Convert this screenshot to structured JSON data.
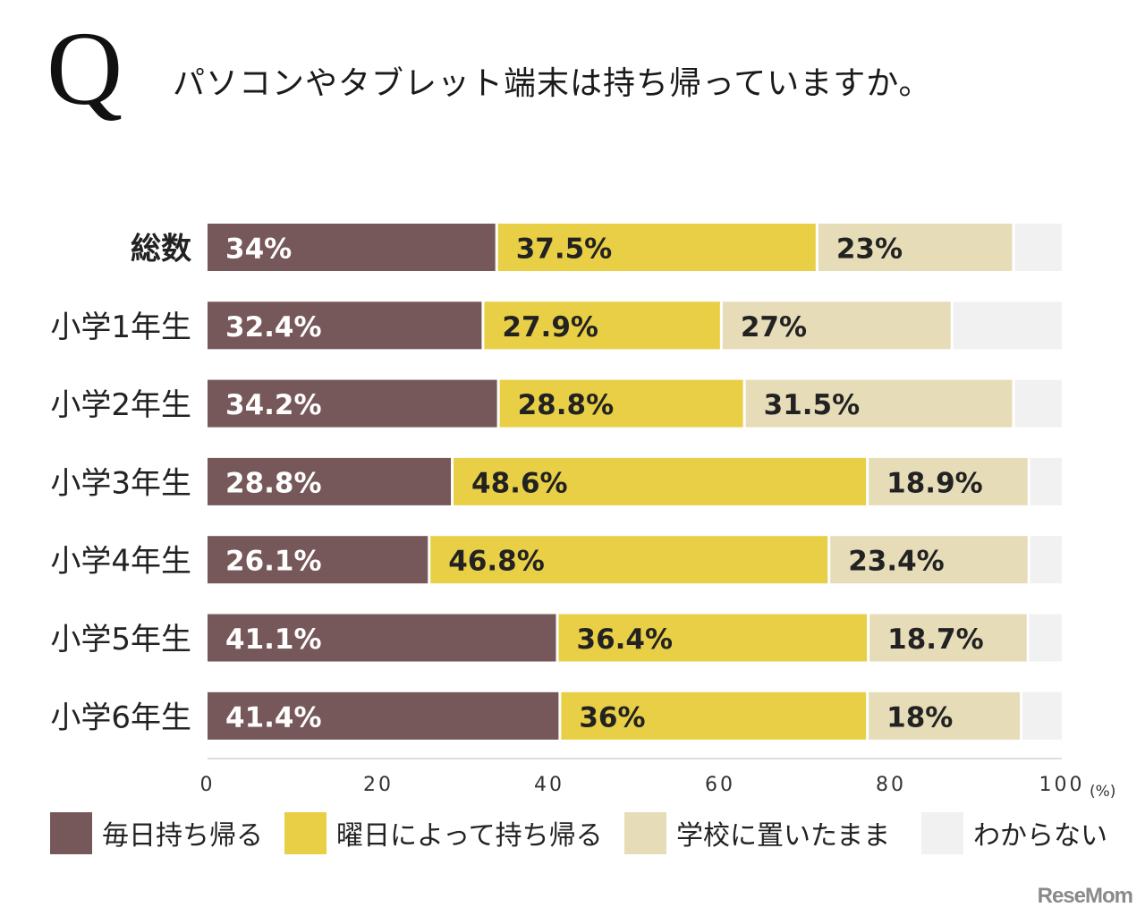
{
  "question_mark": "Q",
  "title": "パソコンやタブレット端末は持ち帰っていますか。",
  "logo": "ReseMom",
  "chart_data": {
    "type": "bar",
    "orientation": "horizontal",
    "stacked": true,
    "categories": [
      "総数",
      "小学1年生",
      "小学2年生",
      "小学3年生",
      "小学4年生",
      "小学5年生",
      "小学6年生"
    ],
    "series": [
      {
        "name": "毎日持ち帰る",
        "color": "#77585a",
        "values": [
          34,
          32.4,
          34.2,
          28.8,
          26.1,
          41.1,
          41.4
        ],
        "labels": [
          "34%",
          "32.4%",
          "34.2%",
          "28.8%",
          "26.1%",
          "41.1%",
          "41.4%"
        ]
      },
      {
        "name": "曜日によって持ち帰る",
        "color": "#e8cf45",
        "values": [
          37.5,
          27.9,
          28.8,
          48.6,
          46.8,
          36.4,
          36
        ],
        "labels": [
          "37.5%",
          "27.9%",
          "28.8%",
          "48.6%",
          "46.8%",
          "36.4%",
          "36%"
        ]
      },
      {
        "name": "学校に置いたまま",
        "color": "#e6dcb8",
        "values": [
          23,
          27,
          31.5,
          18.9,
          23.4,
          18.7,
          18
        ],
        "labels": [
          "23%",
          "27%",
          "31.5%",
          "18.9%",
          "23.4%",
          "18.7%",
          "18%"
        ]
      },
      {
        "name": "わからない",
        "color": "#f1f1f1",
        "values": [
          5.5,
          12.7,
          5.5,
          3.7,
          3.7,
          3.8,
          4.6
        ],
        "labels": [
          "",
          "",
          "",
          "",
          "",
          "",
          ""
        ]
      }
    ],
    "xlim": [
      0,
      100
    ],
    "xticks": [
      "0",
      "20",
      "40",
      "60",
      "80",
      "100"
    ],
    "xunit": "(%)",
    "grid": false,
    "legend_position": "bottom"
  }
}
